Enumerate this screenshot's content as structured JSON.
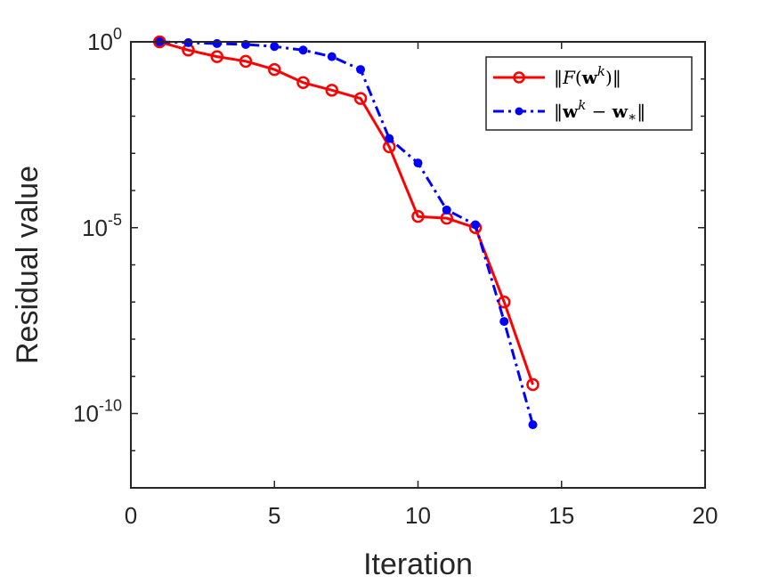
{
  "chart_data": {
    "type": "line",
    "xlabel": "Iteration",
    "ylabel": "Residual value",
    "xlim": [
      0,
      20
    ],
    "ylim": [
      1e-12,
      1
    ],
    "yscale": "log",
    "xticks": [
      "0",
      "5",
      "10",
      "15",
      "20"
    ],
    "yticks": [
      {
        "base": "10",
        "exp": "0",
        "value": 1
      },
      {
        "base": "10",
        "exp": "-5",
        "value": 1e-05
      },
      {
        "base": "10",
        "exp": "-10",
        "value": 1e-10
      }
    ],
    "legend_position": "top-right",
    "series": [
      {
        "name": "||F(w^k)||",
        "color": "#ff0000",
        "marker": "open-circle",
        "linestyle": "solid",
        "x": [
          1,
          2,
          3,
          4,
          5,
          6,
          7,
          8,
          9,
          10,
          11,
          12,
          13,
          14
        ],
        "y": [
          1.0,
          0.6,
          0.4,
          0.3,
          0.18,
          0.08,
          0.05,
          0.03,
          0.0015,
          2e-05,
          1.8e-05,
          1e-05,
          1e-07,
          6e-10
        ]
      },
      {
        "name": "||w^k - w_*||",
        "color": "#0000ff",
        "marker": "filled-dot",
        "linestyle": "dash-dot",
        "x": [
          1,
          2,
          3,
          4,
          5,
          6,
          7,
          8,
          9,
          10,
          11,
          12,
          13,
          14
        ],
        "y": [
          1.0,
          0.95,
          0.9,
          0.85,
          0.75,
          0.6,
          0.4,
          0.18,
          0.0025,
          0.00055,
          3e-05,
          1.2e-05,
          3e-08,
          5e-11
        ]
      }
    ]
  }
}
